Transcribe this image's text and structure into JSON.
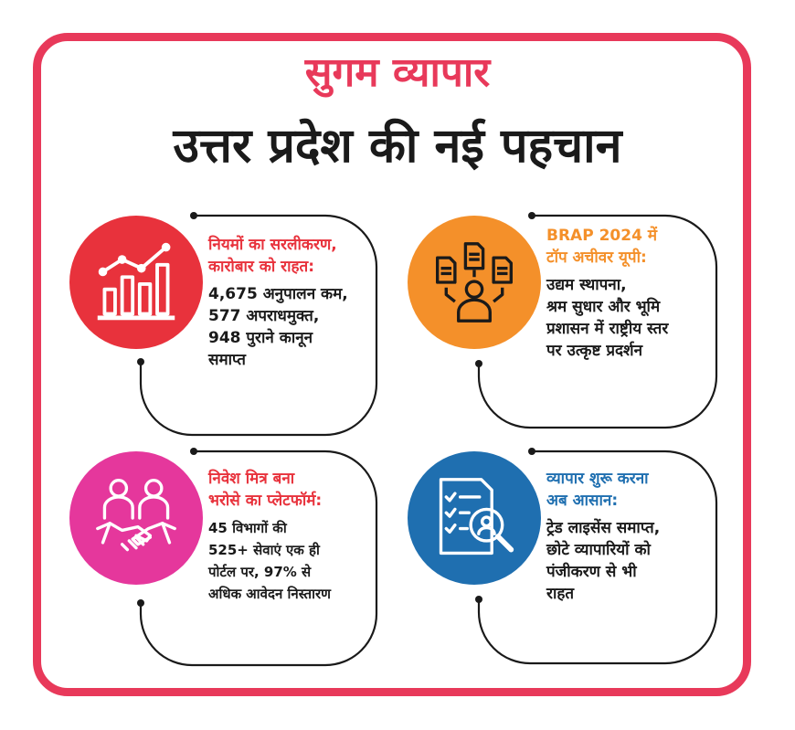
{
  "header": {
    "title": "सुगम व्यापार",
    "subtitle": "उत्तर प्रदेश की नई पहचान"
  },
  "colors": {
    "frame": "#e8395a",
    "red": "#e8323c",
    "orange": "#f4902a",
    "magenta": "#e5379c",
    "blue": "#1f6fb0"
  },
  "cards": [
    {
      "icon": "rising-bar-chart-icon",
      "heading": [
        "नियमों का सरलीकरण,",
        "कारोबार को राहत:"
      ],
      "body": [
        "4,675 अनुपालन कम,",
        "577 अपराधमुक्त,",
        "948 पुराने कानून",
        "समाप्त"
      ]
    },
    {
      "icon": "person-documents-icon",
      "heading": [
        "BRAP 2024 में",
        "टॉप अचीवर यूपी:"
      ],
      "body": [
        "उद्यम स्थापना,",
        "श्रम सुधार और भूमि",
        "प्रशासन में राष्ट्रीय स्तर",
        "पर उत्कृष्ट प्रदर्शन"
      ]
    },
    {
      "icon": "handshake-people-icon",
      "heading": [
        "निवेश मित्र बना",
        "भरोसे का प्लेटफॉर्म:"
      ],
      "body": [
        "45 विभागों की",
        "525+ सेवाएं एक ही",
        "पोर्टल पर, 97% से",
        "अधिक आवेदन निस्तारण"
      ]
    },
    {
      "icon": "checklist-search-icon",
      "heading": [
        "व्यापार शुरू करना",
        "अब आसान:"
      ],
      "body": [
        "ट्रेड लाइसेंस समाप्त,",
        "छोटे व्यापारियों को",
        "पंजीकरण से भी",
        "राहत"
      ]
    }
  ]
}
